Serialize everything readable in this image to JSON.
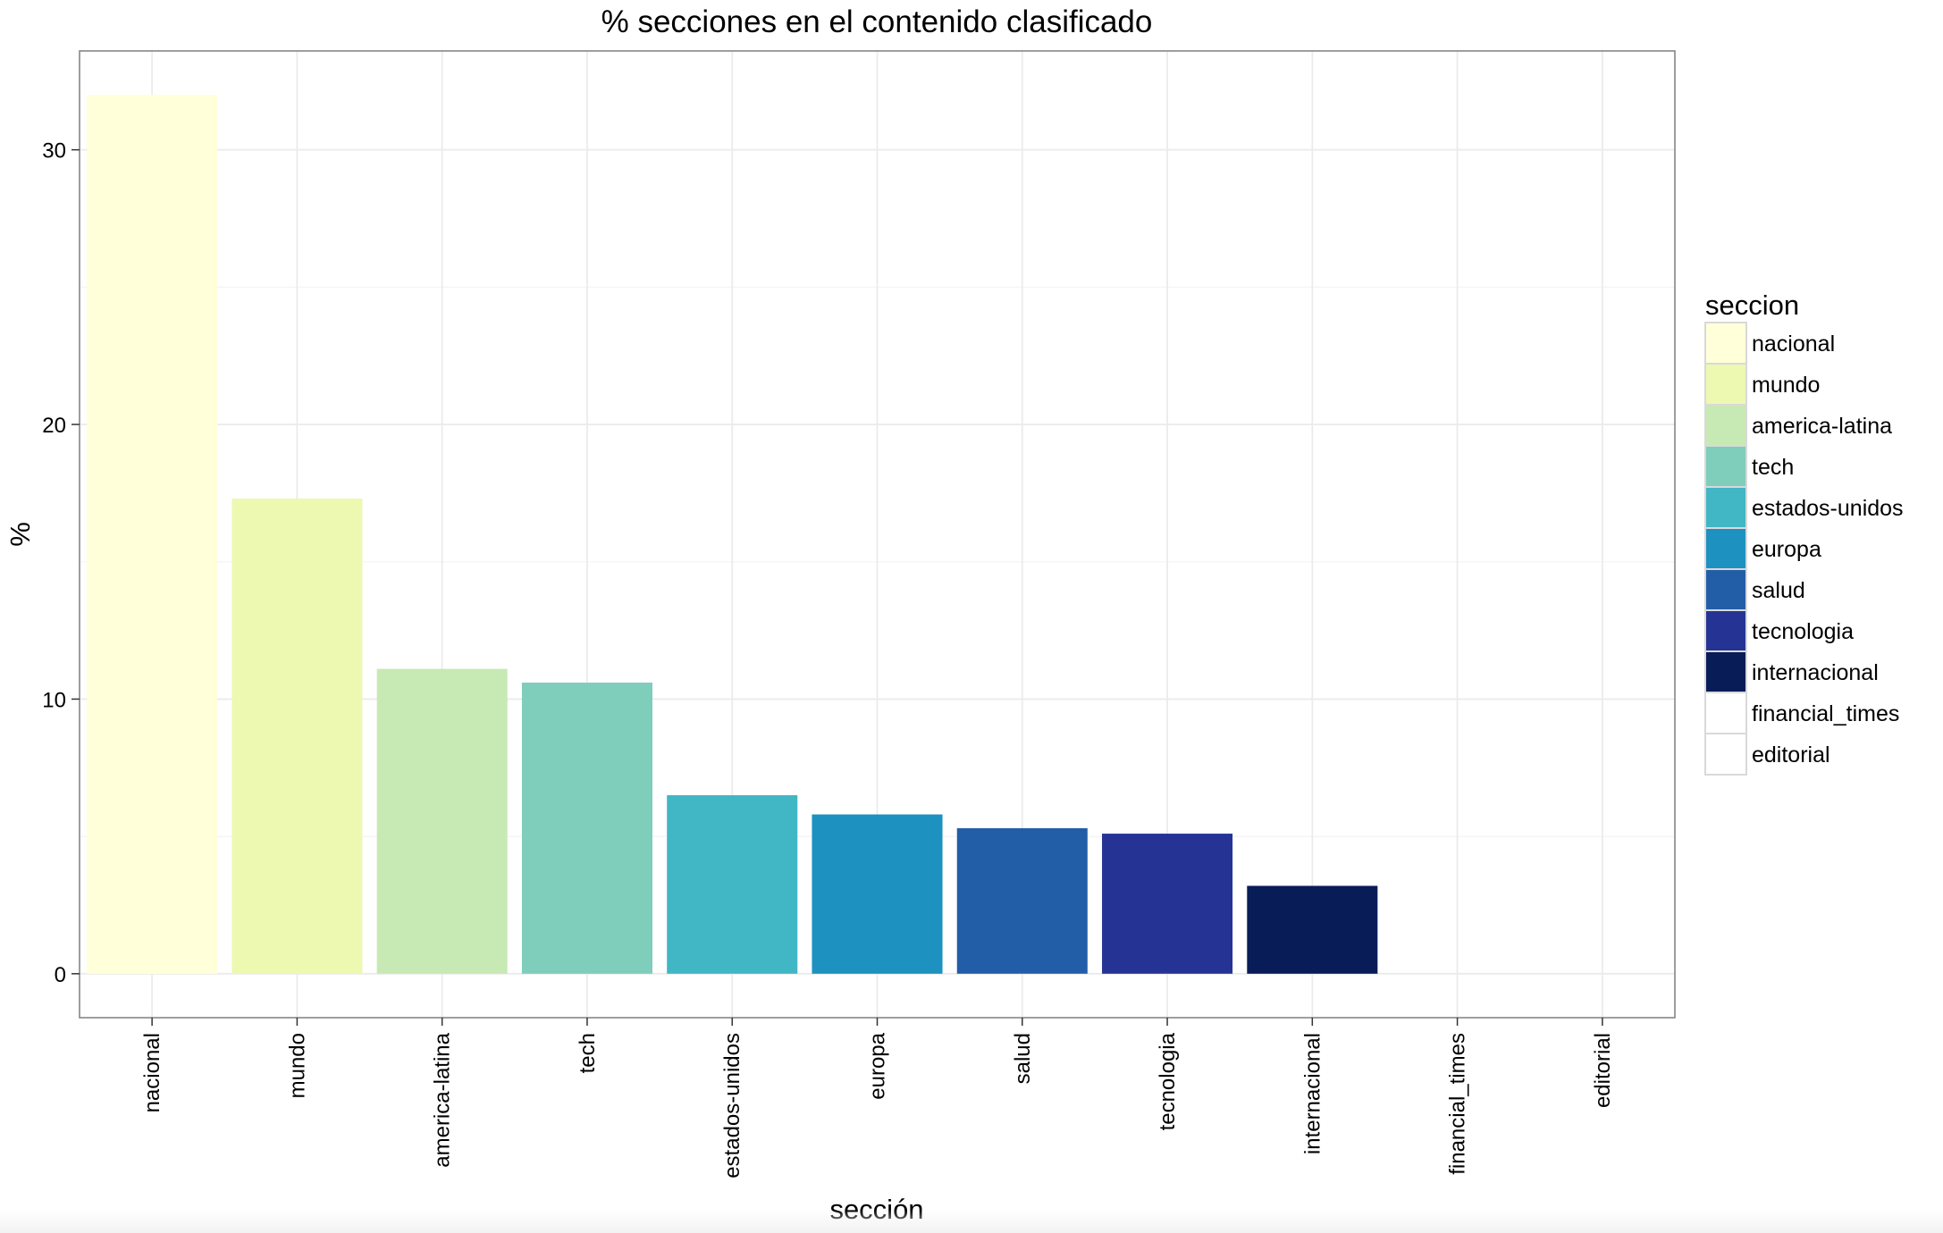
{
  "chart_data": {
    "type": "bar",
    "title": "% secciones en el contenido clasificado",
    "xlabel": "sección",
    "ylabel": "%",
    "categories": [
      "nacional",
      "mundo",
      "america-latina",
      "tech",
      "estados-unidos",
      "europa",
      "salud",
      "tecnologia",
      "internacional",
      "financial_times",
      "editorial"
    ],
    "values": [
      32.0,
      17.3,
      11.1,
      10.6,
      6.5,
      5.8,
      5.3,
      5.1,
      3.2,
      0.0,
      0.0
    ],
    "colors": [
      "#ffffd9",
      "#edf8b1",
      "#c7e9b4",
      "#7fcdbb",
      "#41b6c4",
      "#1d91c0",
      "#225ea8",
      "#253494",
      "#081d58",
      "#ffffff",
      "#ffffff"
    ],
    "ylim": [
      -1.6,
      33.6
    ],
    "yticks": [
      0,
      10,
      20,
      30
    ],
    "grid": true,
    "legend": {
      "title": "seccion",
      "placement": "right"
    }
  }
}
